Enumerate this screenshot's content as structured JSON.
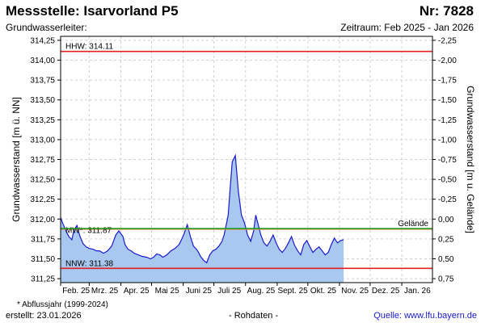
{
  "header": {
    "title": "Messstelle: Isarvorland P5",
    "number": "Nr: 7828",
    "aquifer": "Grundwasserleiter:",
    "period": "Zeitraum: Feb 2025 - Jan 2026"
  },
  "footer": {
    "footnote": "* Abflussjahr (1999-2024)",
    "created": "erstellt:  23.01.2026",
    "rawdata": "- Rohdaten -",
    "source": "Quelle: www.lfu.bayern.de"
  },
  "colors": {
    "fill": "#a9c8f0",
    "line": "#1a1acc",
    "hhw": "#e02020",
    "nnw": "#e02020",
    "mw": "#f08a50",
    "ground": "#1f9a1f",
    "grid": "#d0d0d0"
  },
  "chart_data": {
    "type": "area",
    "ylabel": "Grundwasserstand [m ü. NN]",
    "y2label": "Grundwasserstand [m u. Gelände]",
    "ylim": [
      311.2,
      314.3
    ],
    "y2lim": [
      -2.3,
      0.8
    ],
    "ground_level": 311.88,
    "grid": true,
    "yticks": [
      "314,25",
      "314,00",
      "313,75",
      "313,50",
      "313,25",
      "313,00",
      "312,75",
      "312,50",
      "312,25",
      "312,00",
      "311,75",
      "311,50",
      "311,25"
    ],
    "yticks_values": [
      314.25,
      314.0,
      313.75,
      313.5,
      313.25,
      313.0,
      312.75,
      312.5,
      312.25,
      312.0,
      311.75,
      311.5,
      311.25
    ],
    "y2ticks": [
      "-2,25",
      "-2,00",
      "-1,75",
      "-1,50",
      "-1,25",
      "-1,00",
      "-0,75",
      "-0,50",
      "-0,25",
      "0,00",
      "0,25",
      "0,50",
      "0,75"
    ],
    "y2ticks_values": [
      -2.25,
      -2.0,
      -1.75,
      -1.5,
      -1.25,
      -1.0,
      -0.75,
      -0.5,
      -0.25,
      0.0,
      0.25,
      0.5,
      0.75
    ],
    "x_start": "2025-02-01",
    "x_end": "2026-01-31",
    "xticks": [
      {
        "date": "2025-02-01",
        "label": "Feb. 25"
      },
      {
        "date": "2025-03-01",
        "label": "Mrz. 25"
      },
      {
        "date": "2025-04-01",
        "label": "Apr. 25"
      },
      {
        "date": "2025-05-01",
        "label": "Mai 25"
      },
      {
        "date": "2025-06-01",
        "label": "Juni 25"
      },
      {
        "date": "2025-07-01",
        "label": "Juli 25"
      },
      {
        "date": "2025-08-01",
        "label": "Aug. 25"
      },
      {
        "date": "2025-09-01",
        "label": "Sept. 25"
      },
      {
        "date": "2025-10-01",
        "label": "Okt. 25"
      },
      {
        "date": "2025-11-01",
        "label": "Nov. 25"
      },
      {
        "date": "2025-12-01",
        "label": "Dez. 25"
      },
      {
        "date": "2026-01-01",
        "label": "Jan. 26"
      }
    ],
    "reference_lines": [
      {
        "name": "HHW",
        "label": "HHW: 314.11",
        "value": 314.11,
        "colorKey": "hhw"
      },
      {
        "name": "MW",
        "label": "MW*: 311.87",
        "value": 311.87,
        "colorKey": "mw"
      },
      {
        "name": "NNW",
        "label": "NNW: 311.38",
        "value": 311.38,
        "colorKey": "nnw"
      },
      {
        "name": "Gelände",
        "label": "Gelände",
        "value": 311.88,
        "colorKey": "ground"
      }
    ],
    "series": [
      {
        "x": [
          "2025-02-01",
          "2025-02-03",
          "2025-02-06",
          "2025-02-09",
          "2025-02-12",
          "2025-02-14",
          "2025-02-17",
          "2025-02-20",
          "2025-02-23",
          "2025-02-26",
          "2025-03-01",
          "2025-03-05",
          "2025-03-08",
          "2025-03-11",
          "2025-03-15",
          "2025-03-19",
          "2025-03-23",
          "2025-03-27",
          "2025-03-30",
          "2025-04-03",
          "2025-04-05",
          "2025-04-08",
          "2025-04-11",
          "2025-04-14",
          "2025-04-18",
          "2025-04-22",
          "2025-04-26",
          "2025-04-30",
          "2025-05-03",
          "2025-05-06",
          "2025-05-09",
          "2025-05-12",
          "2025-05-16",
          "2025-05-20",
          "2025-05-24",
          "2025-05-28",
          "2025-05-31",
          "2025-06-02",
          "2025-06-05",
          "2025-06-08",
          "2025-06-11",
          "2025-06-14",
          "2025-06-16",
          "2025-06-18",
          "2025-06-21",
          "2025-06-24",
          "2025-06-27",
          "2025-06-30",
          "2025-07-03",
          "2025-07-06",
          "2025-07-09",
          "2025-07-11",
          "2025-07-13",
          "2025-07-15",
          "2025-07-17",
          "2025-07-19",
          "2025-07-22",
          "2025-07-25",
          "2025-07-28",
          "2025-07-31",
          "2025-08-03",
          "2025-08-06",
          "2025-08-09",
          "2025-08-11",
          "2025-08-13",
          "2025-08-16",
          "2025-08-19",
          "2025-08-22",
          "2025-08-25",
          "2025-08-28",
          "2025-08-31",
          "2025-09-03",
          "2025-09-06",
          "2025-09-09",
          "2025-09-12",
          "2025-09-15",
          "2025-09-18",
          "2025-09-21",
          "2025-09-24",
          "2025-09-27",
          "2025-09-30",
          "2025-10-03",
          "2025-10-06",
          "2025-10-09",
          "2025-10-12",
          "2025-10-15",
          "2025-10-18",
          "2025-10-21",
          "2025-10-24",
          "2025-10-27",
          "2025-10-30",
          "2025-11-02",
          "2025-11-05"
        ],
        "y": [
          312.02,
          311.95,
          311.86,
          311.78,
          311.74,
          311.86,
          311.92,
          311.78,
          311.69,
          311.65,
          311.63,
          311.62,
          311.6,
          311.6,
          311.57,
          311.6,
          311.66,
          311.8,
          311.85,
          311.78,
          311.68,
          311.62,
          311.6,
          311.57,
          311.55,
          311.53,
          311.52,
          311.5,
          311.52,
          311.56,
          311.55,
          311.52,
          311.55,
          311.6,
          311.63,
          311.68,
          311.76,
          311.82,
          311.93,
          311.78,
          311.66,
          311.62,
          311.58,
          311.53,
          311.48,
          311.45,
          311.55,
          311.6,
          311.62,
          311.66,
          311.72,
          311.8,
          311.92,
          312.05,
          312.4,
          312.72,
          312.8,
          312.35,
          312.05,
          311.95,
          311.8,
          311.72,
          311.85,
          312.05,
          311.95,
          311.8,
          311.7,
          311.66,
          311.72,
          311.8,
          311.7,
          311.62,
          311.58,
          311.63,
          311.7,
          311.78,
          311.67,
          311.6,
          311.55,
          311.68,
          311.73,
          311.65,
          311.58,
          311.62,
          311.65,
          311.6,
          311.55,
          311.58,
          311.68,
          311.76,
          311.7,
          311.73,
          311.74
        ]
      }
    ]
  }
}
